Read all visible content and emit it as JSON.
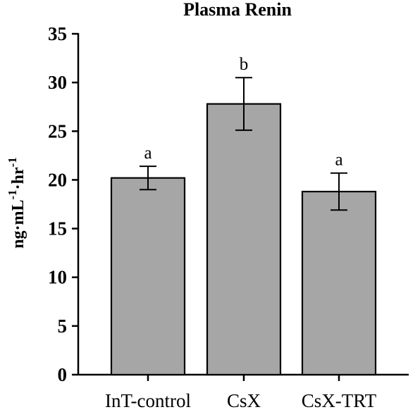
{
  "chart_data": {
    "type": "bar",
    "title": "Plasma Renin",
    "ylabel_parts": {
      "base1": "ng·mL",
      "exp1": "-1",
      "base2": "·hr",
      "exp2": "-1"
    },
    "xlabel": "",
    "categories": [
      "InT-control",
      "CsX",
      "CsX-TRT"
    ],
    "values": [
      20.2,
      27.8,
      18.8
    ],
    "errors": [
      1.2,
      2.7,
      1.9
    ],
    "significance": [
      "a",
      "b",
      "a"
    ],
    "ylim": [
      0,
      35
    ],
    "yticks": [
      0,
      5,
      10,
      15,
      20,
      25,
      30,
      35
    ],
    "bar_color": "#a6a6a6",
    "edge_color": "#000000",
    "grid": false,
    "legend": "none"
  }
}
